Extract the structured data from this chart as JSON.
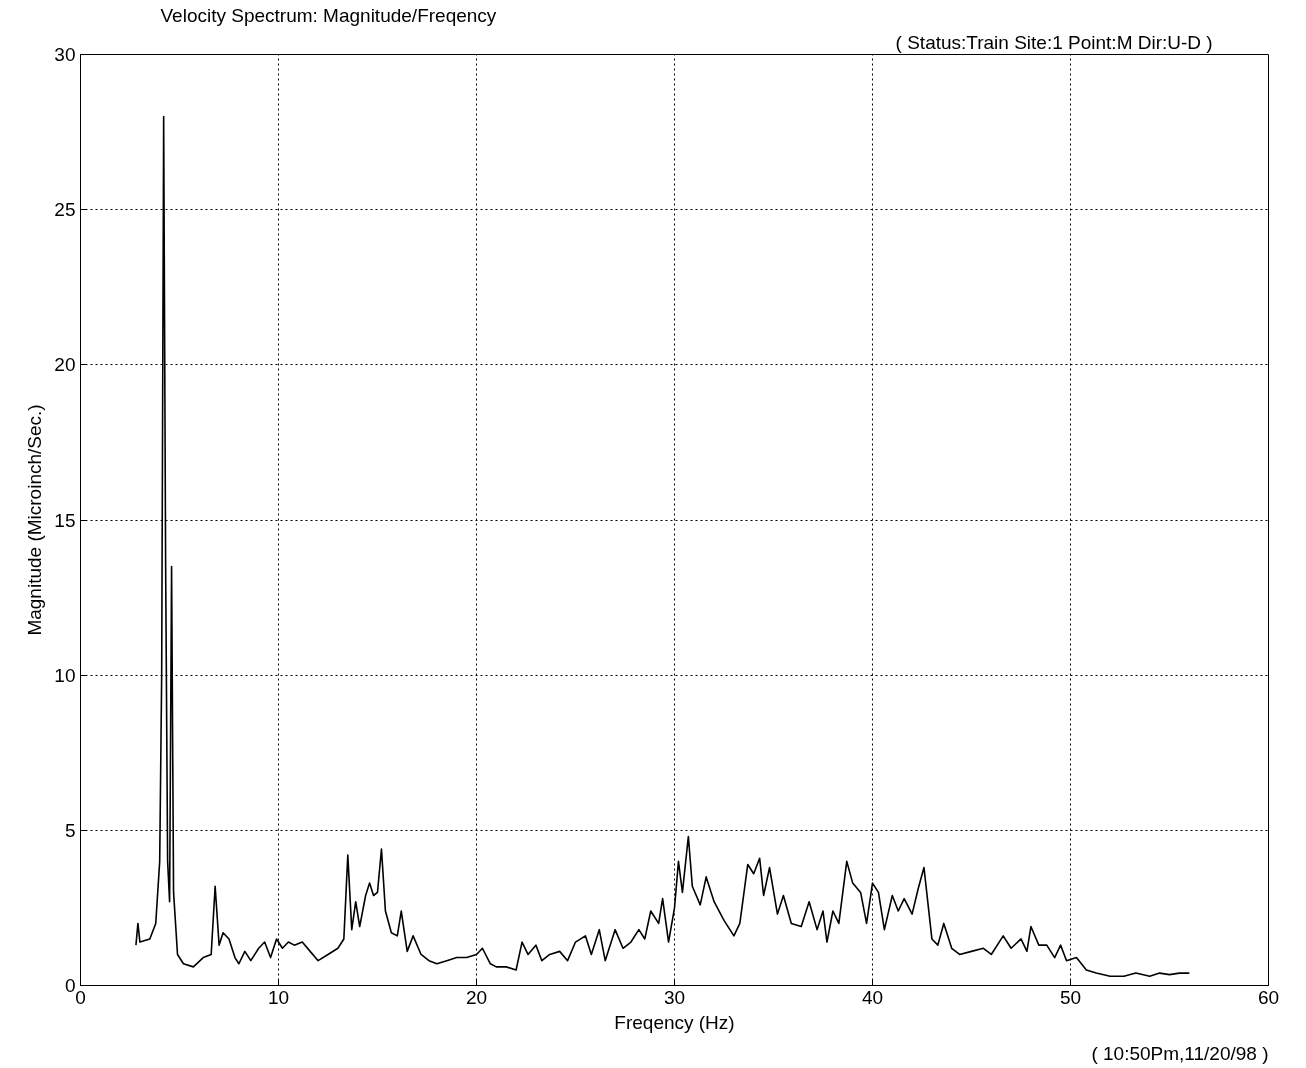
{
  "chart_data": {
    "type": "line",
    "title": "Velocity Spectrum: Magnitude/Freqency",
    "subtitle": "( Status:Train  Site:1  Point:M  Dir:U-D )",
    "xlabel": "Freqency (Hz)",
    "ylabel": "Magnitude (Microinch/Sec.)",
    "annotations": [
      "( 10:50Pm,11/20/98 )"
    ],
    "xlim": [
      0,
      60
    ],
    "ylim": [
      0,
      30
    ],
    "xticks": [
      0,
      10,
      20,
      30,
      40,
      50,
      60
    ],
    "yticks": [
      0,
      5,
      10,
      15,
      20,
      25,
      30
    ],
    "grid": true,
    "line_style": "solid",
    "marker": "none",
    "series": [
      {
        "color": "#000000",
        "x": [
          2.8,
          2.9,
          3.0,
          3.5,
          3.8,
          4.0,
          4.1,
          4.2,
          4.3,
          4.4,
          4.5,
          4.6,
          4.7,
          4.9,
          5.2,
          5.7,
          6.2,
          6.6,
          6.8,
          7.0,
          7.2,
          7.5,
          7.8,
          8.0,
          8.3,
          8.6,
          9.0,
          9.3,
          9.6,
          9.9,
          10.2,
          10.5,
          10.8,
          11.2,
          11.6,
          12.0,
          12.5,
          13.0,
          13.3,
          13.5,
          13.7,
          13.9,
          14.1,
          14.4,
          14.6,
          14.8,
          15.0,
          15.2,
          15.4,
          15.7,
          16.0,
          16.2,
          16.5,
          16.8,
          17.2,
          17.6,
          18.0,
          18.5,
          19.0,
          19.5,
          20.0,
          20.3,
          20.7,
          21.0,
          21.5,
          22.0,
          22.3,
          22.6,
          23.0,
          23.3,
          23.7,
          24.2,
          24.6,
          25.0,
          25.5,
          25.8,
          26.2,
          26.5,
          27.0,
          27.4,
          27.8,
          28.2,
          28.5,
          28.8,
          29.2,
          29.4,
          29.7,
          30.0,
          30.2,
          30.4,
          30.7,
          30.9,
          31.3,
          31.6,
          32.0,
          32.5,
          33.0,
          33.3,
          33.7,
          34.0,
          34.3,
          34.5,
          34.8,
          35.2,
          35.5,
          35.9,
          36.4,
          36.8,
          37.2,
          37.5,
          37.7,
          38.0,
          38.3,
          38.7,
          39.0,
          39.4,
          39.7,
          40.0,
          40.3,
          40.6,
          41.0,
          41.3,
          41.6,
          42.0,
          42.3,
          42.6,
          43.0,
          43.3,
          43.6,
          44.0,
          44.4,
          45.0,
          45.6,
          46.0,
          46.6,
          47.0,
          47.5,
          47.8,
          48.0,
          48.4,
          48.8,
          49.2,
          49.5,
          49.8,
          50.3,
          50.8,
          51.3,
          52.0,
          52.7,
          53.3,
          54.0,
          54.5,
          55.0,
          55.5,
          56.0
        ],
        "values": [
          1.3,
          2.0,
          1.4,
          1.5,
          2.0,
          4.0,
          10.0,
          28.0,
          13.5,
          4.0,
          2.7,
          13.5,
          3.0,
          1.0,
          0.7,
          0.6,
          0.9,
          1.0,
          3.2,
          1.3,
          1.7,
          1.5,
          0.9,
          0.7,
          1.1,
          0.8,
          1.2,
          1.4,
          0.9,
          1.5,
          1.2,
          1.4,
          1.3,
          1.4,
          1.1,
          0.8,
          1.0,
          1.2,
          1.5,
          4.2,
          1.8,
          2.7,
          1.9,
          2.9,
          3.3,
          2.9,
          3.0,
          4.4,
          2.4,
          1.7,
          1.6,
          2.4,
          1.1,
          1.6,
          1.0,
          0.8,
          0.7,
          0.8,
          0.9,
          0.9,
          1.0,
          1.2,
          0.7,
          0.6,
          0.6,
          0.5,
          1.4,
          1.0,
          1.3,
          0.8,
          1.0,
          1.1,
          0.8,
          1.4,
          1.6,
          1.0,
          1.8,
          0.8,
          1.8,
          1.2,
          1.4,
          1.8,
          1.5,
          2.4,
          2.0,
          2.8,
          1.4,
          2.5,
          4.0,
          3.0,
          4.8,
          3.2,
          2.6,
          3.5,
          2.7,
          2.1,
          1.6,
          2.0,
          3.9,
          3.6,
          4.1,
          2.9,
          3.8,
          2.3,
          2.9,
          2.0,
          1.9,
          2.7,
          1.8,
          2.4,
          1.4,
          2.4,
          2.0,
          4.0,
          3.3,
          3.0,
          2.0,
          3.3,
          3.0,
          1.8,
          2.9,
          2.4,
          2.8,
          2.3,
          3.1,
          3.8,
          1.5,
          1.3,
          2.0,
          1.2,
          1.0,
          1.1,
          1.2,
          1.0,
          1.6,
          1.2,
          1.5,
          1.1,
          1.9,
          1.3,
          1.3,
          0.9,
          1.3,
          0.8,
          0.9,
          0.5,
          0.4,
          0.3,
          0.3,
          0.4,
          0.3,
          0.4,
          0.35,
          0.4,
          0.4
        ]
      }
    ]
  }
}
